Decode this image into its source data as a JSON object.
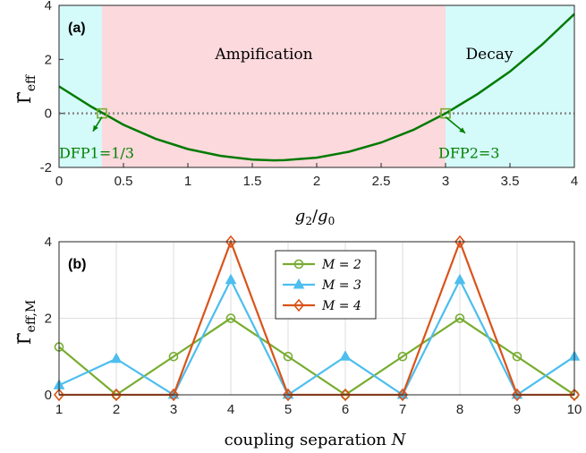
{
  "chart_data": [
    {
      "type": "line",
      "panel_label": "(a)",
      "xlabel_main": "g",
      "xlabel_sub1": "2",
      "xlabel_slash": "/",
      "xlabel_sub2": "0",
      "ylabel_main": "Γ̃",
      "ylabel_sub": "eff",
      "xlim": [
        0,
        4
      ],
      "ylim": [
        -2,
        4
      ],
      "xticks": [
        "0",
        "0.5",
        "1",
        "1.5",
        "2",
        "2.5",
        "3",
        "3.5",
        "4"
      ],
      "yticks": [
        "-2",
        "0",
        "2",
        "4"
      ],
      "regions": [
        {
          "x": [
            0,
            0.333
          ],
          "color": "#d5fafa"
        },
        {
          "x": [
            0.333,
            3
          ],
          "color": "#fcd9dd",
          "label": "Ampification"
        },
        {
          "x": [
            3,
            4
          ],
          "color": "#d5fafa",
          "label": "Decay"
        }
      ],
      "curve": {
        "color": "#007a00",
        "x": [
          0,
          0.25,
          0.5,
          0.75,
          1.0,
          1.25,
          1.5,
          1.667,
          1.75,
          2.0,
          2.25,
          2.5,
          2.75,
          3.0,
          3.25,
          3.5,
          3.75,
          4.0
        ],
        "y": [
          1.0,
          0.25,
          -0.42,
          -0.94,
          -1.32,
          -1.57,
          -1.71,
          -1.74,
          -1.73,
          -1.64,
          -1.42,
          -1.08,
          -0.61,
          0.0,
          0.72,
          1.55,
          2.55,
          3.68
        ]
      },
      "zero_line": {
        "y": 0,
        "color": "#888888"
      },
      "annotations": [
        {
          "text": "DFP1=1/3",
          "x": 0.333,
          "y": 0,
          "color": "#008000"
        },
        {
          "text": "DFP2=3",
          "x": 3,
          "y": 0,
          "color": "#008000"
        }
      ],
      "marker_color": "#77ac30"
    },
    {
      "type": "line",
      "panel_label": "(b)",
      "xlabel_text": "coupling separation ",
      "xlabel_var": "N",
      "ylabel_main": "Γ̃",
      "ylabel_sub": "eff,M",
      "xlim": [
        1,
        10
      ],
      "ylim": [
        0,
        4
      ],
      "x": [
        1,
        2,
        3,
        4,
        5,
        6,
        7,
        8,
        9,
        10
      ],
      "xticks": [
        "1",
        "2",
        "3",
        "4",
        "5",
        "6",
        "7",
        "8",
        "9",
        "10"
      ],
      "yticks": [
        "0",
        "2",
        "4"
      ],
      "series": [
        {
          "name": "M = 2",
          "color": "#77ac30",
          "marker": "circle",
          "values": [
            1.25,
            0,
            1,
            2,
            1,
            0,
            1,
            2,
            1,
            0
          ]
        },
        {
          "name": "M = 3",
          "color": "#4dbeee",
          "marker": "triangle",
          "values": [
            0.25,
            0.94,
            0,
            3,
            0,
            1,
            0,
            3,
            0,
            1
          ]
        },
        {
          "name": "M = 4",
          "color": "#d95319",
          "marker": "diamond",
          "values": [
            0,
            0,
            0,
            4,
            0,
            0,
            0,
            4,
            0,
            0
          ]
        }
      ],
      "legend": "top-center"
    }
  ]
}
